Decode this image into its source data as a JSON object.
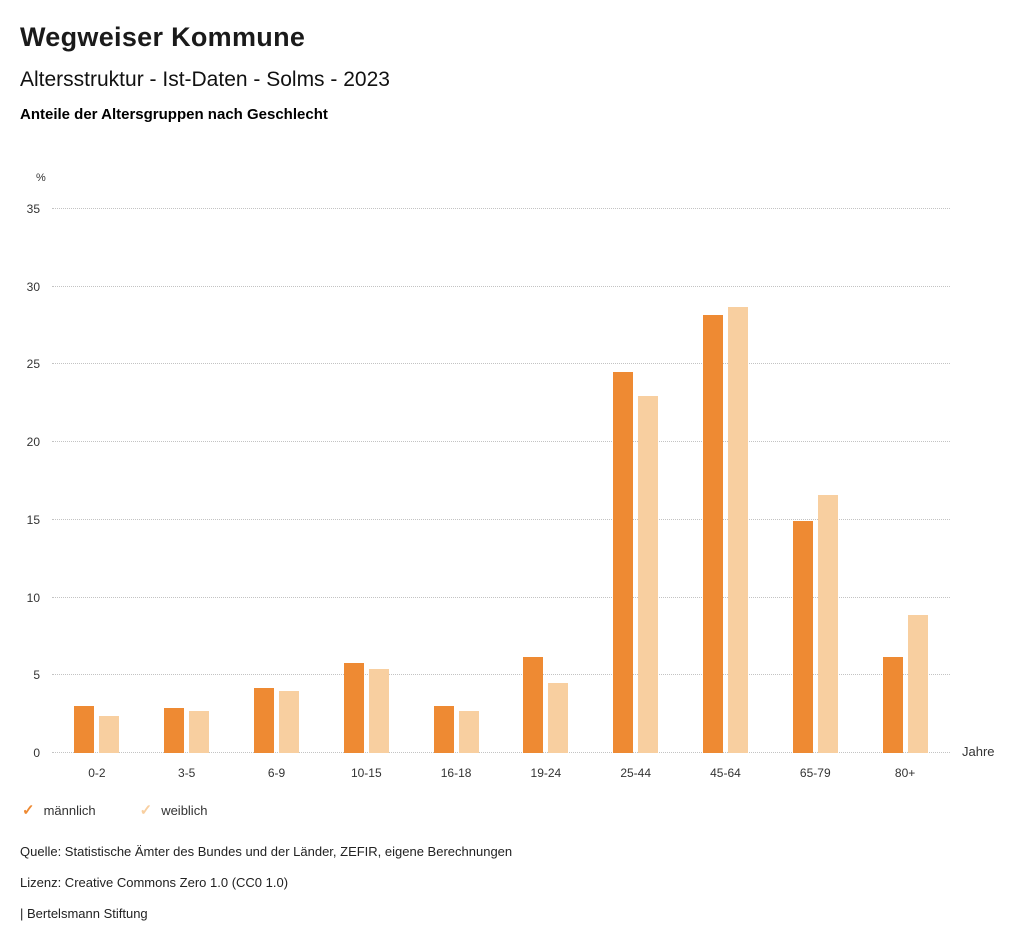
{
  "header": {
    "title": "Wegweiser Kommune",
    "subtitle": "Altersstruktur - Ist-Daten - Solms - 2023",
    "chart_heading": "Anteile der Altersgruppen nach Geschlecht"
  },
  "chart_data": {
    "type": "bar",
    "title": "Anteile der Altersgruppen nach Geschlecht",
    "categories": [
      "0-2",
      "3-5",
      "6-9",
      "10-15",
      "16-18",
      "19-24",
      "25-44",
      "45-64",
      "65-79",
      "80+"
    ],
    "series": [
      {
        "name": "männlich",
        "color": "#EE8A33",
        "values": [
          3.0,
          2.9,
          4.2,
          5.8,
          3.0,
          6.2,
          24.5,
          28.2,
          14.9,
          6.2
        ]
      },
      {
        "name": "weiblich",
        "color": "#F8CFA0",
        "values": [
          2.4,
          2.7,
          4.0,
          5.4,
          2.7,
          4.5,
          23.0,
          28.7,
          16.6,
          8.9
        ]
      }
    ],
    "xlabel": "Jahre",
    "ylabel": "%",
    "ylim": [
      0,
      35
    ],
    "ytick_step": 5,
    "grid": "horizontal-dotted",
    "legend_position": "bottom-left"
  },
  "legend": {
    "items": [
      {
        "label": "männlich",
        "color": "#EE8A33"
      },
      {
        "label": "weiblich",
        "color": "#F8CFA0"
      }
    ],
    "check_glyph": "✓"
  },
  "footer": {
    "source": "Quelle: Statistische Ämter des Bundes und der Länder, ZEFIR, eigene Berechnungen",
    "license": "Lizenz: Creative Commons Zero 1.0 (CC0 1.0)",
    "attribution": "| Bertelsmann Stiftung"
  }
}
